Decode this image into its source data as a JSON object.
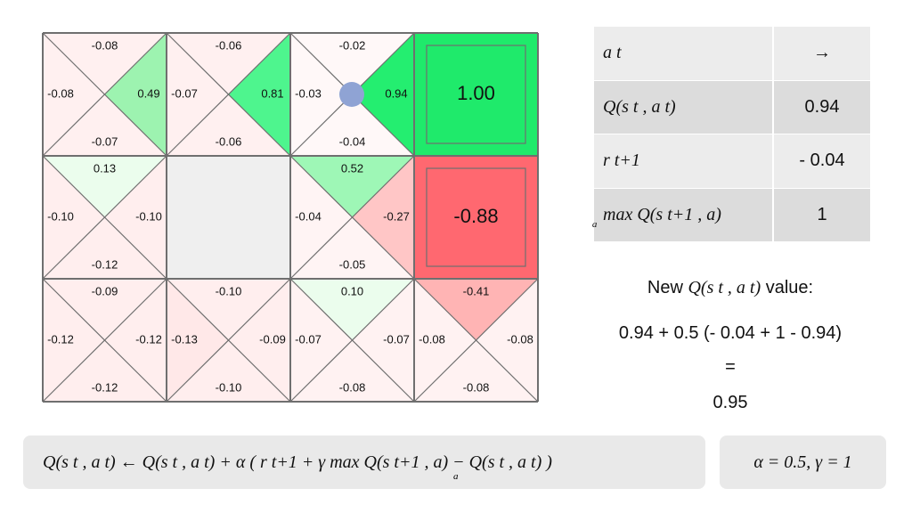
{
  "grid": {
    "rows": 3,
    "cols": 4,
    "cells": [
      {
        "type": "state",
        "row": 0,
        "col": 0,
        "up": "-0.08",
        "right": "0.49",
        "down": "-0.07",
        "left": "-0.08",
        "colors": {
          "up": "#fff0f0",
          "right": "#9df3b0",
          "down": "#fff0f0",
          "left": "#fff0f0"
        }
      },
      {
        "type": "state",
        "row": 0,
        "col": 1,
        "up": "-0.06",
        "right": "0.81",
        "down": "-0.06",
        "left": "-0.07",
        "colors": {
          "up": "#fff0f0",
          "right": "#4ef58e",
          "down": "#fff0f0",
          "left": "#fff0f0"
        }
      },
      {
        "type": "state",
        "row": 0,
        "col": 2,
        "up": "-0.02",
        "right": "0.94",
        "down": "-0.04",
        "left": "-0.03",
        "agent": true,
        "colors": {
          "up": "#fff8f8",
          "right": "#24ee70",
          "down": "#fff8f8",
          "left": "#fff8f8"
        }
      },
      {
        "type": "terminal",
        "row": 0,
        "col": 3,
        "value": "1.00",
        "color": "#1fea6b"
      },
      {
        "type": "state",
        "row": 1,
        "col": 0,
        "up": "0.13",
        "right": "-0.10",
        "down": "-0.12",
        "left": "-0.10",
        "colors": {
          "up": "#ebfded",
          "right": "#ffeeee",
          "down": "#ffeeee",
          "left": "#ffeeee"
        }
      },
      {
        "type": "wall",
        "row": 1,
        "col": 1
      },
      {
        "type": "state",
        "row": 1,
        "col": 2,
        "up": "0.52",
        "right": "-0.27",
        "down": "-0.05",
        "left": "-0.04",
        "colors": {
          "up": "#9ef7b6",
          "right": "#ffc6c6",
          "down": "#fff4f4",
          "left": "#fff4f4"
        }
      },
      {
        "type": "terminal",
        "row": 1,
        "col": 3,
        "value": "-0.88",
        "color": "#ff6870"
      },
      {
        "type": "state",
        "row": 2,
        "col": 0,
        "up": "-0.09",
        "right": "-0.12",
        "down": "-0.12",
        "left": "-0.12",
        "colors": {
          "up": "#ffeeee",
          "right": "#ffeeee",
          "down": "#ffeeee",
          "left": "#ffeeee"
        }
      },
      {
        "type": "state",
        "row": 2,
        "col": 1,
        "up": "-0.10",
        "right": "-0.09",
        "down": "-0.10",
        "left": "-0.13",
        "colors": {
          "up": "#ffeeee",
          "right": "#ffeeee",
          "down": "#ffeeee",
          "left": "#ffe8e8"
        }
      },
      {
        "type": "state",
        "row": 2,
        "col": 2,
        "up": "0.10",
        "right": "-0.07",
        "down": "-0.08",
        "left": "-0.07",
        "colors": {
          "up": "#ebfded",
          "right": "#fff2f2",
          "down": "#fff2f2",
          "left": "#fff2f2"
        }
      },
      {
        "type": "state",
        "row": 2,
        "col": 3,
        "up": "-0.41",
        "right": "-0.08",
        "down": "-0.08",
        "left": "-0.08",
        "colors": {
          "up": "#ffb4b4",
          "right": "#fff2f2",
          "down": "#fff2f2",
          "left": "#fff2f2"
        }
      }
    ],
    "agent_color": "#8fa3d4",
    "wall_color": "#efefef",
    "line_color": "#6f6f6f"
  },
  "table": {
    "rows": [
      {
        "label": "a t",
        "value": "→"
      },
      {
        "label": "Q(s t , a t)",
        "value": "0.94"
      },
      {
        "label": "r t+1",
        "value": "- 0.04"
      },
      {
        "label": "max Q(s t+1 , a)",
        "sub": "a",
        "value": "1"
      }
    ]
  },
  "calc": {
    "heading_pre": "New",
    "heading_math": "Q(s t , a t)",
    "heading_post": "value:",
    "expression": "0.94 + 0.5 (- 0.04 + 1 - 0.94)",
    "equals": "=",
    "result": "0.95"
  },
  "update_rule": {
    "formula": "Q(s t , a t)  ← Q(s t , a t) + α ( r t+1 + γ max Q(s t+1 , a) − Q(s t , a t) )",
    "sub": "a"
  },
  "params": "α = 0.5,  γ = 1"
}
